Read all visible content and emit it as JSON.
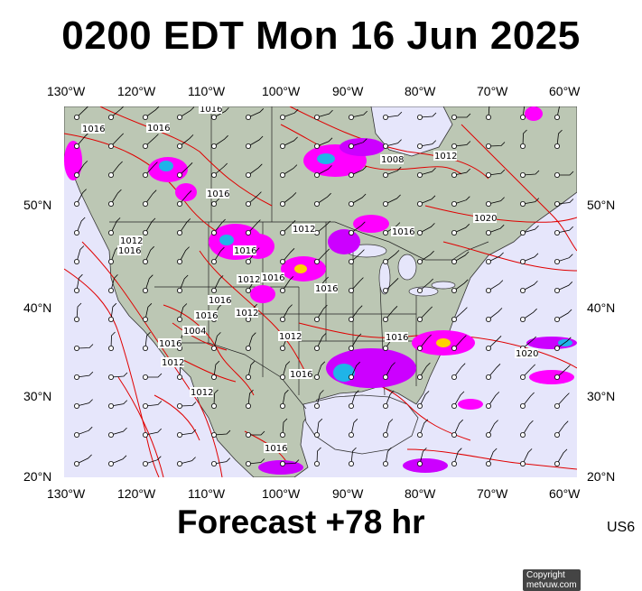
{
  "title": "0200 EDT Mon 16 Jun 2025",
  "footer": {
    "label": "Forecast +78 hr",
    "region_code": "US6"
  },
  "copyright": "Copyright metvuw.com",
  "axes": {
    "longitude_top": [
      "130°W",
      "120°W",
      "110°W",
      "100°W",
      "90°W",
      "80°W",
      "70°W",
      "60°W"
    ],
    "longitude_bottom": [
      "130°W",
      "120°W",
      "110°W",
      "100°W",
      "90°W",
      "80°W",
      "70°W",
      "60°W"
    ],
    "latitude_left": [
      "50°N",
      "40°N",
      "30°N",
      "20°N"
    ],
    "latitude_right": [
      "50°N",
      "40°N",
      "30°N",
      "20°N"
    ]
  },
  "isobar_labels": [
    "1016",
    "1016",
    "1016",
    "1016",
    "1008",
    "1012",
    "1012",
    "1016",
    "1012",
    "1012",
    "1016",
    "1016",
    "1016",
    "1016",
    "1016",
    "1016",
    "1012",
    "1012",
    "1020",
    "1020",
    "1004",
    "1016",
    "1012",
    "1016",
    "1012",
    "1016",
    "1016"
  ],
  "colors": {
    "isobar": "#e00000",
    "land": "#bcc7b4",
    "ocean": "#e6e6fb",
    "precip_heavy": "#ff00ff",
    "precip_core": "#1fb4e8"
  }
}
